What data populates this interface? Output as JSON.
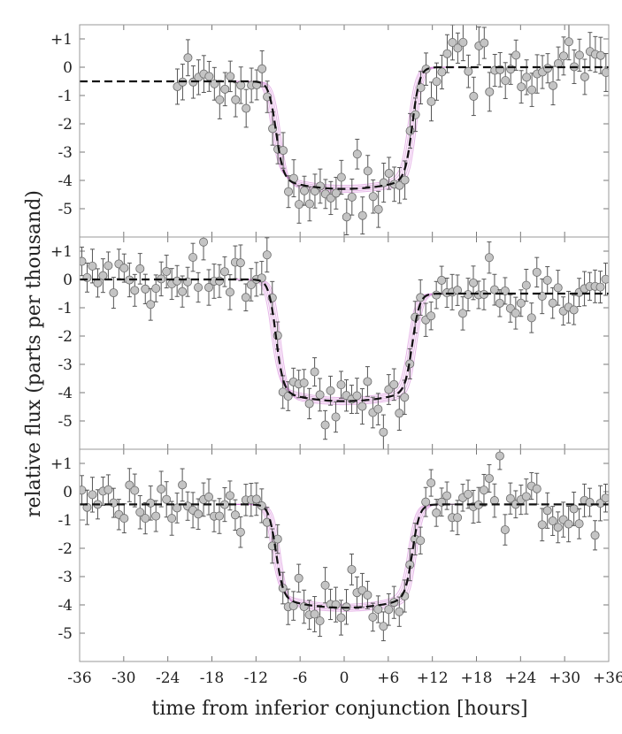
{
  "chart_data": {
    "type": "scatter",
    "layout": "three vertically stacked panels sharing the x axis",
    "xlabel": "time from inferior conjunction [hours]",
    "ylabel": "relative flux (parts per thousand)",
    "xlim": [
      -36,
      36
    ],
    "ylim": [
      -6,
      1.5
    ],
    "xticks": [
      -36,
      -30,
      -24,
      -18,
      -12,
      -6,
      0,
      6,
      12,
      18,
      24,
      30,
      36
    ],
    "xtick_labels": [
      "-36",
      "-30",
      "-24",
      "-18",
      "-12",
      "-6",
      "0",
      "+6",
      "+12",
      "+18",
      "+24",
      "+30",
      "+36"
    ],
    "yticks": [
      1,
      0,
      -1,
      -2,
      -3,
      -4,
      -5
    ],
    "ytick_labels": [
      "+1",
      "0",
      "-1",
      "-2",
      "-3",
      "-4",
      "-5"
    ],
    "marker": "grey circles with error bars",
    "model_line": "black dashed best-fit model",
    "posterior_samples_color": "#d27ad6",
    "panels": [
      {
        "name": "panel-1",
        "data_range": [
          -23,
          36
        ],
        "ingress": -9.3,
        "egress": 9.3,
        "pre_level": -0.5,
        "post_level": 0.0,
        "depth": 4.3,
        "error": 0.6,
        "scatter": 0.6
      },
      {
        "name": "panel-2",
        "data_range": [
          -36,
          36
        ],
        "ingress": -9.3,
        "egress": 9.3,
        "pre_level": 0.0,
        "post_level": -0.5,
        "depth": 4.3,
        "error": 0.55,
        "scatter": 0.5
      },
      {
        "name": "panel-3",
        "data_range": [
          -36,
          36
        ],
        "ingress": -9.3,
        "egress": 9.3,
        "pre_level": -0.45,
        "post_level": -0.45,
        "depth": 4.1,
        "error": 0.55,
        "scatter": 0.45
      }
    ]
  }
}
